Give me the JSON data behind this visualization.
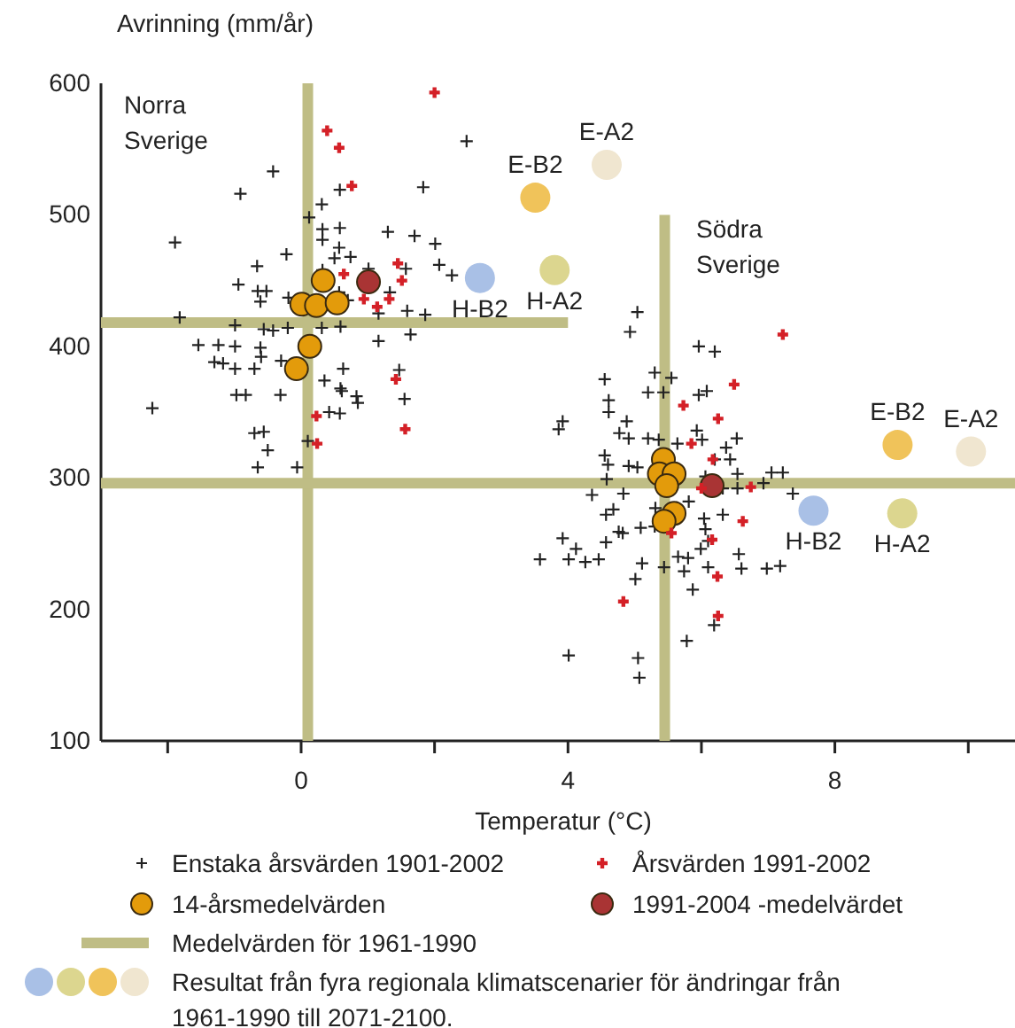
{
  "chart_data": {
    "type": "scatter",
    "xlabel": "Temperatur (°C)",
    "ylabel": "Avrinning (mm/år)",
    "xlim": [
      -3,
      10.7
    ],
    "ylim": [
      100,
      600
    ],
    "xticks": [
      {
        "value": -2,
        "label": null
      },
      0,
      {
        "value": 2,
        "label": null
      },
      4,
      {
        "value": 6,
        "label": null
      },
      8,
      {
        "value": 10,
        "label": null
      }
    ],
    "yticks": [
      100,
      200,
      300,
      400,
      500,
      600
    ],
    "grid": false,
    "legend": "bottom",
    "annotations": [
      "Norra Sverige",
      "Södra Sverige",
      "Resultat från fyra regionala klimatscenarier för ändringar från 1961-1990 till 2071-2100."
    ],
    "series": [
      {
        "name": "Medelvärden för 1961-1990",
        "type": "line",
        "color": "#bfbd85",
        "line_style": "solid",
        "x": [
          -3,
          4
        ],
        "values": [
          418,
          418
        ]
      },
      {
        "name": "Enstaka årsvärden 1901-2002",
        "color": "#222222",
        "marker": "cross",
        "x": [
          2.48,
          -0.42,
          -0.91,
          1.83,
          0.58,
          0.31,
          0.12,
          0.32,
          0.58,
          0.32,
          1.3,
          1.7,
          2.01,
          -1.89,
          0.57,
          -0.22,
          0.5,
          0.74,
          -0.66,
          0.32,
          1.01,
          1.57,
          2.07,
          2.26,
          -0.94,
          -0.65,
          -0.52,
          -0.61,
          -0.19,
          0.57,
          0.7,
          1.33,
          1.16,
          1.59,
          1.86,
          -1.82,
          -0.99,
          -0.56,
          -0.42,
          -0.2,
          0.31,
          0.59,
          -1.54,
          -1.24,
          -0.99,
          -0.61,
          1.16,
          1.64,
          -0.6,
          -1.3,
          -1.17,
          -0.99,
          -0.7,
          -0.3,
          0.63,
          1.47,
          0.35,
          0.59,
          0.61,
          0.83,
          0.85,
          1.55,
          -0.97,
          -0.83,
          -0.31,
          -2.23,
          0.42,
          0.58,
          -0.7,
          -0.56,
          -0.5,
          0.1,
          -0.65,
          -0.06,
          5.04,
          4.93,
          5.96,
          6.2,
          4.55,
          5.3,
          5.55,
          5.2,
          5.43,
          5.96,
          6.08,
          4.61,
          4.61,
          3.92,
          4.88,
          3.86,
          4.77,
          4.91,
          5.2,
          5.36,
          5.64,
          6.01,
          5.93,
          6.37,
          6.53,
          6.2,
          6.43,
          4.55,
          4.6,
          4.58,
          4.91,
          5.04,
          4.36,
          4.83,
          6.06,
          6.32,
          6.54,
          6.54,
          7.05,
          7.22,
          6.93,
          7.37,
          4.57,
          4.68,
          4.76,
          4.82,
          4.57,
          5.09,
          5.31,
          5.3,
          5.81,
          6.04,
          6.06,
          6.32,
          6.1,
          5.99,
          3.92,
          4.12,
          4.01,
          4.26,
          4.46,
          3.58,
          5.11,
          5.01,
          5.44,
          5.65,
          5.8,
          5.74,
          6.1,
          5.87,
          6.56,
          6.6,
          6.98,
          7.18,
          6.19,
          5.78,
          4.01,
          5.05,
          5.07
        ],
        "values": [
          556,
          533,
          516,
          521,
          519,
          508,
          498,
          489,
          490,
          481,
          487,
          484,
          478,
          479,
          475,
          470,
          467,
          468,
          461,
          458,
          459,
          459,
          462,
          454,
          447,
          442,
          442,
          434,
          437,
          441,
          435,
          441,
          425,
          427,
          424,
          422,
          416,
          413,
          412,
          414,
          414,
          415,
          401,
          401,
          400,
          399,
          404,
          409,
          392,
          388,
          387,
          383,
          383,
          389,
          383,
          382,
          374,
          368,
          366,
          362,
          357,
          360,
          363,
          363,
          363,
          353,
          350,
          349,
          334,
          335,
          321,
          328,
          308,
          308,
          426,
          411,
          400,
          396,
          375,
          380,
          376,
          365,
          365,
          363,
          366,
          359,
          350,
          343,
          343,
          337,
          334,
          330,
          330,
          329,
          326,
          329,
          336,
          323,
          330,
          314,
          314,
          317,
          310,
          299,
          309,
          308,
          287,
          288,
          301,
          292,
          303,
          292,
          304,
          304,
          296,
          288,
          272,
          276,
          259,
          258,
          251,
          262,
          277,
          263,
          282,
          269,
          261,
          272,
          252,
          246,
          254,
          246,
          238,
          236,
          238,
          238,
          235,
          223,
          232,
          240,
          239,
          229,
          232,
          215,
          242,
          231,
          231,
          233,
          188,
          176,
          165,
          163,
          148
        ]
      },
      {
        "name": "Årsvärden 1991-2002",
        "color": "#d42027",
        "marker": "cross",
        "x": [
          2.0,
          0.39,
          0.57,
          0.76,
          1.45,
          1.51,
          0.64,
          0.94,
          1.14,
          1.32,
          1.42,
          0.23,
          0.24,
          1.56,
          7.22,
          6.49,
          5.73,
          6.25,
          5.85,
          6.17,
          6.0,
          6.74,
          6.62,
          5.55,
          6.16,
          6.24,
          4.83,
          6.25
        ],
        "values": [
          593,
          564,
          551,
          522,
          463,
          450,
          455,
          436,
          430,
          436,
          375,
          347,
          326,
          337,
          409,
          371,
          355,
          345,
          326,
          314,
          292,
          293,
          267,
          258,
          253,
          225,
          206,
          195
        ]
      },
      {
        "name": "14-årsmedelvärden",
        "color": "#e39b0b",
        "marker": "circle",
        "x": [
          0.33,
          0.01,
          0.23,
          0.54,
          0.13,
          -0.07,
          5.43,
          5.37,
          5.59,
          5.48,
          5.59,
          5.44
        ],
        "values": [
          450,
          432,
          431,
          433,
          400,
          383,
          314,
          303,
          303,
          294,
          273,
          267
        ]
      },
      {
        "name": "1991-2004 -medelvärdet",
        "color": "#a93434",
        "marker": "circle",
        "x": [
          1.01,
          6.16
        ],
        "values": [
          449,
          294
        ]
      },
      {
        "name": "H-B2",
        "color": "#a9c0e6",
        "marker": "circle",
        "x": [
          2.68,
          7.68
        ],
        "values": [
          452,
          275
        ]
      },
      {
        "name": "H-A2",
        "color": "#dcd68f",
        "marker": "circle",
        "x": [
          3.8,
          9.01
        ],
        "values": [
          458,
          273
        ]
      },
      {
        "name": "E-B2",
        "color": "#f0c35a",
        "marker": "circle",
        "x": [
          3.51,
          8.94
        ],
        "values": [
          513,
          325
        ]
      },
      {
        "name": "E-A2",
        "color": "#f0e6d0",
        "marker": "circle",
        "x": [
          4.58,
          10.04
        ],
        "values": [
          538,
          320
        ]
      },
      {
        "type": "line",
        "color": "#bfbd85",
        "line_style": "solid",
        "x": [
          0.1,
          0.1
        ],
        "values": [
          600,
          100
        ]
      },
      {
        "type": "line",
        "color": "#bfbd85",
        "line_style": "solid",
        "x": [
          -3,
          10.7
        ],
        "values": [
          296,
          296
        ]
      },
      {
        "type": "line",
        "color": "#bfbd85",
        "line_style": "solid",
        "x": [
          5.45,
          5.45
        ],
        "values": [
          500,
          100
        ]
      }
    ]
  }
}
